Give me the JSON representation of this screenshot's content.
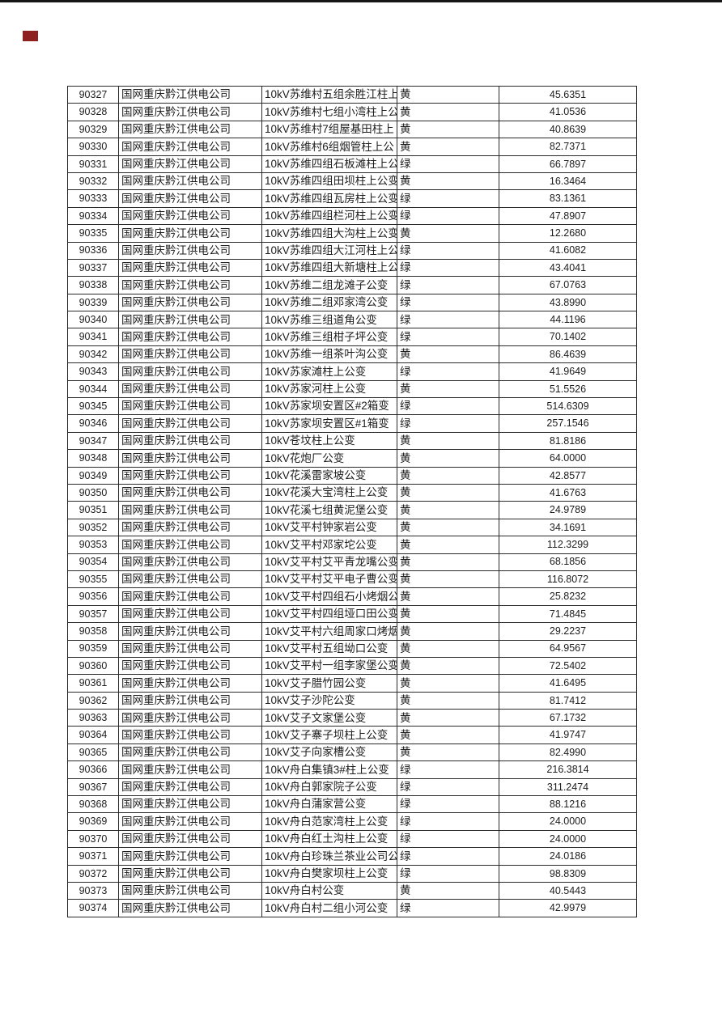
{
  "page": {
    "top_edge_line_color": "#161616",
    "red_marker_color": "#8e2120",
    "status_colors": {
      "yellow_label": "黄",
      "green_label": "绿"
    }
  },
  "table": {
    "columns": [
      "id",
      "company",
      "name",
      "status",
      "value"
    ],
    "rows": [
      {
        "id": "90327",
        "company": "国网重庆黔江供电公司",
        "name": "10kV苏维村五组余胜江柱上",
        "status": "黄",
        "value": "45.6351"
      },
      {
        "id": "90328",
        "company": "国网重庆黔江供电公司",
        "name": "10kV苏维村七组小湾柱上公",
        "status": "黄",
        "value": "41.0536"
      },
      {
        "id": "90329",
        "company": "国网重庆黔江供电公司",
        "name": "10kV苏维村7组屋基田柱上",
        "status": "黄",
        "value": "40.8639"
      },
      {
        "id": "90330",
        "company": "国网重庆黔江供电公司",
        "name": "10kV苏维村6组烟管柱上公",
        "status": "黄",
        "value": "82.7371"
      },
      {
        "id": "90331",
        "company": "国网重庆黔江供电公司",
        "name": "10kV苏维四组石板滩柱上公",
        "status": "绿",
        "value": "66.7897"
      },
      {
        "id": "90332",
        "company": "国网重庆黔江供电公司",
        "name": "10kV苏维四组田坝柱上公变",
        "status": "黄",
        "value": "16.3464"
      },
      {
        "id": "90333",
        "company": "国网重庆黔江供电公司",
        "name": "10kV苏维四组瓦房柱上公变",
        "status": "绿",
        "value": "83.1361"
      },
      {
        "id": "90334",
        "company": "国网重庆黔江供电公司",
        "name": "10kV苏维四组栏河柱上公变",
        "status": "绿",
        "value": "47.8907"
      },
      {
        "id": "90335",
        "company": "国网重庆黔江供电公司",
        "name": "10kV苏维四组大沟柱上公变",
        "status": "黄",
        "value": "12.2680"
      },
      {
        "id": "90336",
        "company": "国网重庆黔江供电公司",
        "name": "10kV苏维四组大江河柱上公",
        "status": "绿",
        "value": "41.6082"
      },
      {
        "id": "90337",
        "company": "国网重庆黔江供电公司",
        "name": "10kV苏维四组大新塘柱上公",
        "status": "绿",
        "value": "43.4041"
      },
      {
        "id": "90338",
        "company": "国网重庆黔江供电公司",
        "name": "10kV苏维二组龙滩子公变",
        "status": "绿",
        "value": "67.0763"
      },
      {
        "id": "90339",
        "company": "国网重庆黔江供电公司",
        "name": "10kV苏维二组邓家湾公变",
        "status": "绿",
        "value": "43.8990"
      },
      {
        "id": "90340",
        "company": "国网重庆黔江供电公司",
        "name": "10kV苏维三组道角公变",
        "status": "绿",
        "value": "44.1196"
      },
      {
        "id": "90341",
        "company": "国网重庆黔江供电公司",
        "name": "10kV苏维三组柑子坪公变",
        "status": "绿",
        "value": "70.1402"
      },
      {
        "id": "90342",
        "company": "国网重庆黔江供电公司",
        "name": "10kV苏维一组茶叶沟公变",
        "status": "黄",
        "value": "86.4639"
      },
      {
        "id": "90343",
        "company": "国网重庆黔江供电公司",
        "name": "10kV苏家滩柱上公变",
        "status": "绿",
        "value": "41.9649"
      },
      {
        "id": "90344",
        "company": "国网重庆黔江供电公司",
        "name": "10kV苏家河柱上公变",
        "status": "黄",
        "value": "51.5526"
      },
      {
        "id": "90345",
        "company": "国网重庆黔江供电公司",
        "name": "10kV苏家坝安置区#2箱变",
        "status": "绿",
        "value": "514.6309"
      },
      {
        "id": "90346",
        "company": "国网重庆黔江供电公司",
        "name": "10kV苏家坝安置区#1箱变",
        "status": "绿",
        "value": "257.1546"
      },
      {
        "id": "90347",
        "company": "国网重庆黔江供电公司",
        "name": "10kV苍坟柱上公变",
        "status": "黄",
        "value": "81.8186"
      },
      {
        "id": "90348",
        "company": "国网重庆黔江供电公司",
        "name": "10kV花炮厂公变",
        "status": "黄",
        "value": "64.0000"
      },
      {
        "id": "90349",
        "company": "国网重庆黔江供电公司",
        "name": "10kV花溪雷家坡公变",
        "status": "黄",
        "value": "42.8577"
      },
      {
        "id": "90350",
        "company": "国网重庆黔江供电公司",
        "name": "10kV花溪大宝湾柱上公变",
        "status": "黄",
        "value": "41.6763"
      },
      {
        "id": "90351",
        "company": "国网重庆黔江供电公司",
        "name": "10kV花溪七组黄泥堡公变",
        "status": "黄",
        "value": "24.9789"
      },
      {
        "id": "90352",
        "company": "国网重庆黔江供电公司",
        "name": "10kV艾平村钟家岩公变",
        "status": "黄",
        "value": "34.1691"
      },
      {
        "id": "90353",
        "company": "国网重庆黔江供电公司",
        "name": "10kV艾平村邓家坨公变",
        "status": "黄",
        "value": "112.3299"
      },
      {
        "id": "90354",
        "company": "国网重庆黔江供电公司",
        "name": "10kV艾平村艾平青龙嘴公变",
        "status": "黄",
        "value": "68.1856"
      },
      {
        "id": "90355",
        "company": "国网重庆黔江供电公司",
        "name": "10kV艾平村艾平电子曹公变",
        "status": "黄",
        "value": "116.8072"
      },
      {
        "id": "90356",
        "company": "国网重庆黔江供电公司",
        "name": "10kV艾平村四组石小烤烟公",
        "status": "黄",
        "value": "25.8232"
      },
      {
        "id": "90357",
        "company": "国网重庆黔江供电公司",
        "name": "10kV艾平村四组垭口田公变",
        "status": "黄",
        "value": "71.4845"
      },
      {
        "id": "90358",
        "company": "国网重庆黔江供电公司",
        "name": "10kV艾平村六组周家口烤烟",
        "status": "黄",
        "value": "29.2237"
      },
      {
        "id": "90359",
        "company": "国网重庆黔江供电公司",
        "name": "10kV艾平村五组坳口公变",
        "status": "黄",
        "value": "64.9567"
      },
      {
        "id": "90360",
        "company": "国网重庆黔江供电公司",
        "name": "10kV艾平村一组李家堡公变",
        "status": "黄",
        "value": "72.5402"
      },
      {
        "id": "90361",
        "company": "国网重庆黔江供电公司",
        "name": "10kV艾子腊竹园公变",
        "status": "黄",
        "value": "41.6495"
      },
      {
        "id": "90362",
        "company": "国网重庆黔江供电公司",
        "name": "10kV艾子沙陀公变",
        "status": "黄",
        "value": "81.7412"
      },
      {
        "id": "90363",
        "company": "国网重庆黔江供电公司",
        "name": "10kV艾子文家堡公变",
        "status": "黄",
        "value": "67.1732"
      },
      {
        "id": "90364",
        "company": "国网重庆黔江供电公司",
        "name": "10kV艾子寨子坝柱上公变",
        "status": "黄",
        "value": "41.9747"
      },
      {
        "id": "90365",
        "company": "国网重庆黔江供电公司",
        "name": "10kV艾子向家槽公变",
        "status": "黄",
        "value": "82.4990"
      },
      {
        "id": "90366",
        "company": "国网重庆黔江供电公司",
        "name": "10kV舟白集镇3#柱上公变",
        "status": "绿",
        "value": "216.3814"
      },
      {
        "id": "90367",
        "company": "国网重庆黔江供电公司",
        "name": "10kV舟白郭家院子公变",
        "status": "绿",
        "value": "311.2474"
      },
      {
        "id": "90368",
        "company": "国网重庆黔江供电公司",
        "name": "10kV舟白蒲家营公变",
        "status": "绿",
        "value": "88.1216"
      },
      {
        "id": "90369",
        "company": "国网重庆黔江供电公司",
        "name": "10kV舟白范家湾柱上公变",
        "status": "绿",
        "value": "24.0000"
      },
      {
        "id": "90370",
        "company": "国网重庆黔江供电公司",
        "name": "10kV舟白红土沟柱上公变",
        "status": "绿",
        "value": "24.0000"
      },
      {
        "id": "90371",
        "company": "国网重庆黔江供电公司",
        "name": "10kV舟白珍珠兰茶业公司公",
        "status": "绿",
        "value": "24.0186"
      },
      {
        "id": "90372",
        "company": "国网重庆黔江供电公司",
        "name": "10kV舟白樊家坝柱上公变",
        "status": "绿",
        "value": "98.8309"
      },
      {
        "id": "90373",
        "company": "国网重庆黔江供电公司",
        "name": "10kV舟白村公变",
        "status": "黄",
        "value": "40.5443"
      },
      {
        "id": "90374",
        "company": "国网重庆黔江供电公司",
        "name": "10kV舟白村二组小河公变",
        "status": "绿",
        "value": "42.9979"
      }
    ]
  }
}
